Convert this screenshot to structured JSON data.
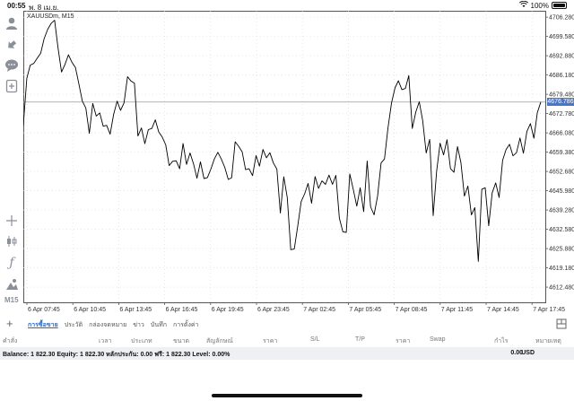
{
  "status_bar": {
    "time": "00:55",
    "date": "พ. 8 เม.ย.",
    "battery": "100%"
  },
  "toolbar": {
    "icons": [
      "account-icon",
      "trade-icon",
      "chat-icon",
      "new-order-icon",
      "crosshair-icon",
      "candlestick-icon",
      "indicator-icon",
      "objects-icon"
    ],
    "timeframe": "M15"
  },
  "chart": {
    "symbol_label": "XAUUSDm, M15",
    "current_price": "4676.786"
  },
  "chart_data": {
    "type": "line",
    "symbol": "XAUUSDm",
    "timeframe": "M15",
    "y_ticks": [
      "4706.280",
      "4699.580",
      "4692.880",
      "4686.180",
      "4679.480",
      "4672.780",
      "4666.080",
      "4659.380",
      "4652.680",
      "4645.980",
      "4639.280",
      "4632.580",
      "4625.880",
      "4619.180",
      "4612.480"
    ],
    "ylim": [
      4607.2,
      4708.5
    ],
    "x_ticks": [
      "6 Apr 07:45",
      "6 Apr 10:45",
      "6 Apr 13:45",
      "6 Apr 16:45",
      "6 Apr 19:45",
      "6 Apr 23:45",
      "7 Apr 02:45",
      "7 Apr 05:45",
      "7 Apr 08:45",
      "7 Apr 11:45",
      "7 Apr 14:45",
      "7 Apr 17:45"
    ],
    "current_price": 4676.786,
    "values": [
      4668.7,
      4685.0,
      4689.6,
      4690.2,
      4692.0,
      4693.8,
      4698.8,
      4702.0,
      4704.1,
      4705.2,
      4695.6,
      4687.2,
      4689.9,
      4693.2,
      4690.6,
      4688.8,
      4683.0,
      4677.1,
      4674.7,
      4665.9,
      4676.3,
      4671.9,
      4673.0,
      4668.4,
      4668.7,
      4665.6,
      4672.5,
      4677.1,
      4673.9,
      4676.5,
      4685.6,
      4684.1,
      4683.3,
      4665.0,
      4667.8,
      4662.3,
      4667.2,
      4667.6,
      4670.6,
      4666.4,
      4664.6,
      4661.9,
      4654.7,
      4656.2,
      4656.4,
      4653.6,
      4662.4,
      4655.1,
      4659.1,
      4655.3,
      4650.3,
      4656.0,
      4650.2,
      4650.5,
      4653.5,
      4657.0,
      4659.3,
      4657.0,
      4654.1,
      4649.9,
      4650.5,
      4663.0,
      4661.4,
      4659.5,
      4653.3,
      4653.6,
      4651.2,
      4658.2,
      4654.5,
      4660.3,
      4657.4,
      4659.2,
      4655.6,
      4653.5,
      4638.2,
      4650.8,
      4643.6,
      4625.5,
      4625.7,
      4633.5,
      4642.2,
      4644.9,
      4648.5,
      4641.6,
      4650.9,
      4646.8,
      4649.4,
      4648.2,
      4651.4,
      4648.2,
      4651.3,
      4636.4,
      4631.7,
      4631.5,
      4651.8,
      4646.4,
      4640.6,
      4647.0,
      4638.7,
      4656.3,
      4640.4,
      4637.6,
      4644.1,
      4655.6,
      4657.0,
      4667.8,
      4676.4,
      4681.7,
      4684.2,
      4681.1,
      4681.5,
      4686.0,
      4667.6,
      4673.3,
      4676.9,
      4670.3,
      4659.1,
      4663.8,
      4637.3,
      4652.6,
      4662.5,
      4658.4,
      4663.7,
      4653.6,
      4652.4,
      4661.3,
      4655.8,
      4644.1,
      4647.6,
      4637.6,
      4640.1,
      4621.4,
      4646.5,
      4647.0,
      4633.8,
      4645.3,
      4648.7,
      4643.6,
      4656.5,
      4660.3,
      4662.1,
      4658.1,
      4659.2,
      4664.3,
      4659.0,
      4666.6,
      4669.3,
      4664.2,
      4673.1,
      4676.8
    ]
  },
  "bottom_tabs": {
    "items": [
      "การซื้อขาย",
      "ประวัติ",
      "กล่องจดหมาย",
      "ข่าว",
      "บันทึก",
      "การตั้งค่า"
    ],
    "active": 0
  },
  "columns": [
    "คำสั่ง",
    "เวลา",
    "ประเภท",
    "ขนาด",
    "สัญลักษณ์",
    "ราคา",
    "S/L",
    "T/P",
    "ราคา",
    "Swap",
    "กำไร",
    "หมายเหตุ"
  ],
  "balance": {
    "summary": "Balance: 1 822.30 Equity: 1 822.30 หลักประกัน: 0.00 ฟรี: 1 822.30 Level: 0.00%",
    "profit": "0.00",
    "currency": "USD"
  }
}
